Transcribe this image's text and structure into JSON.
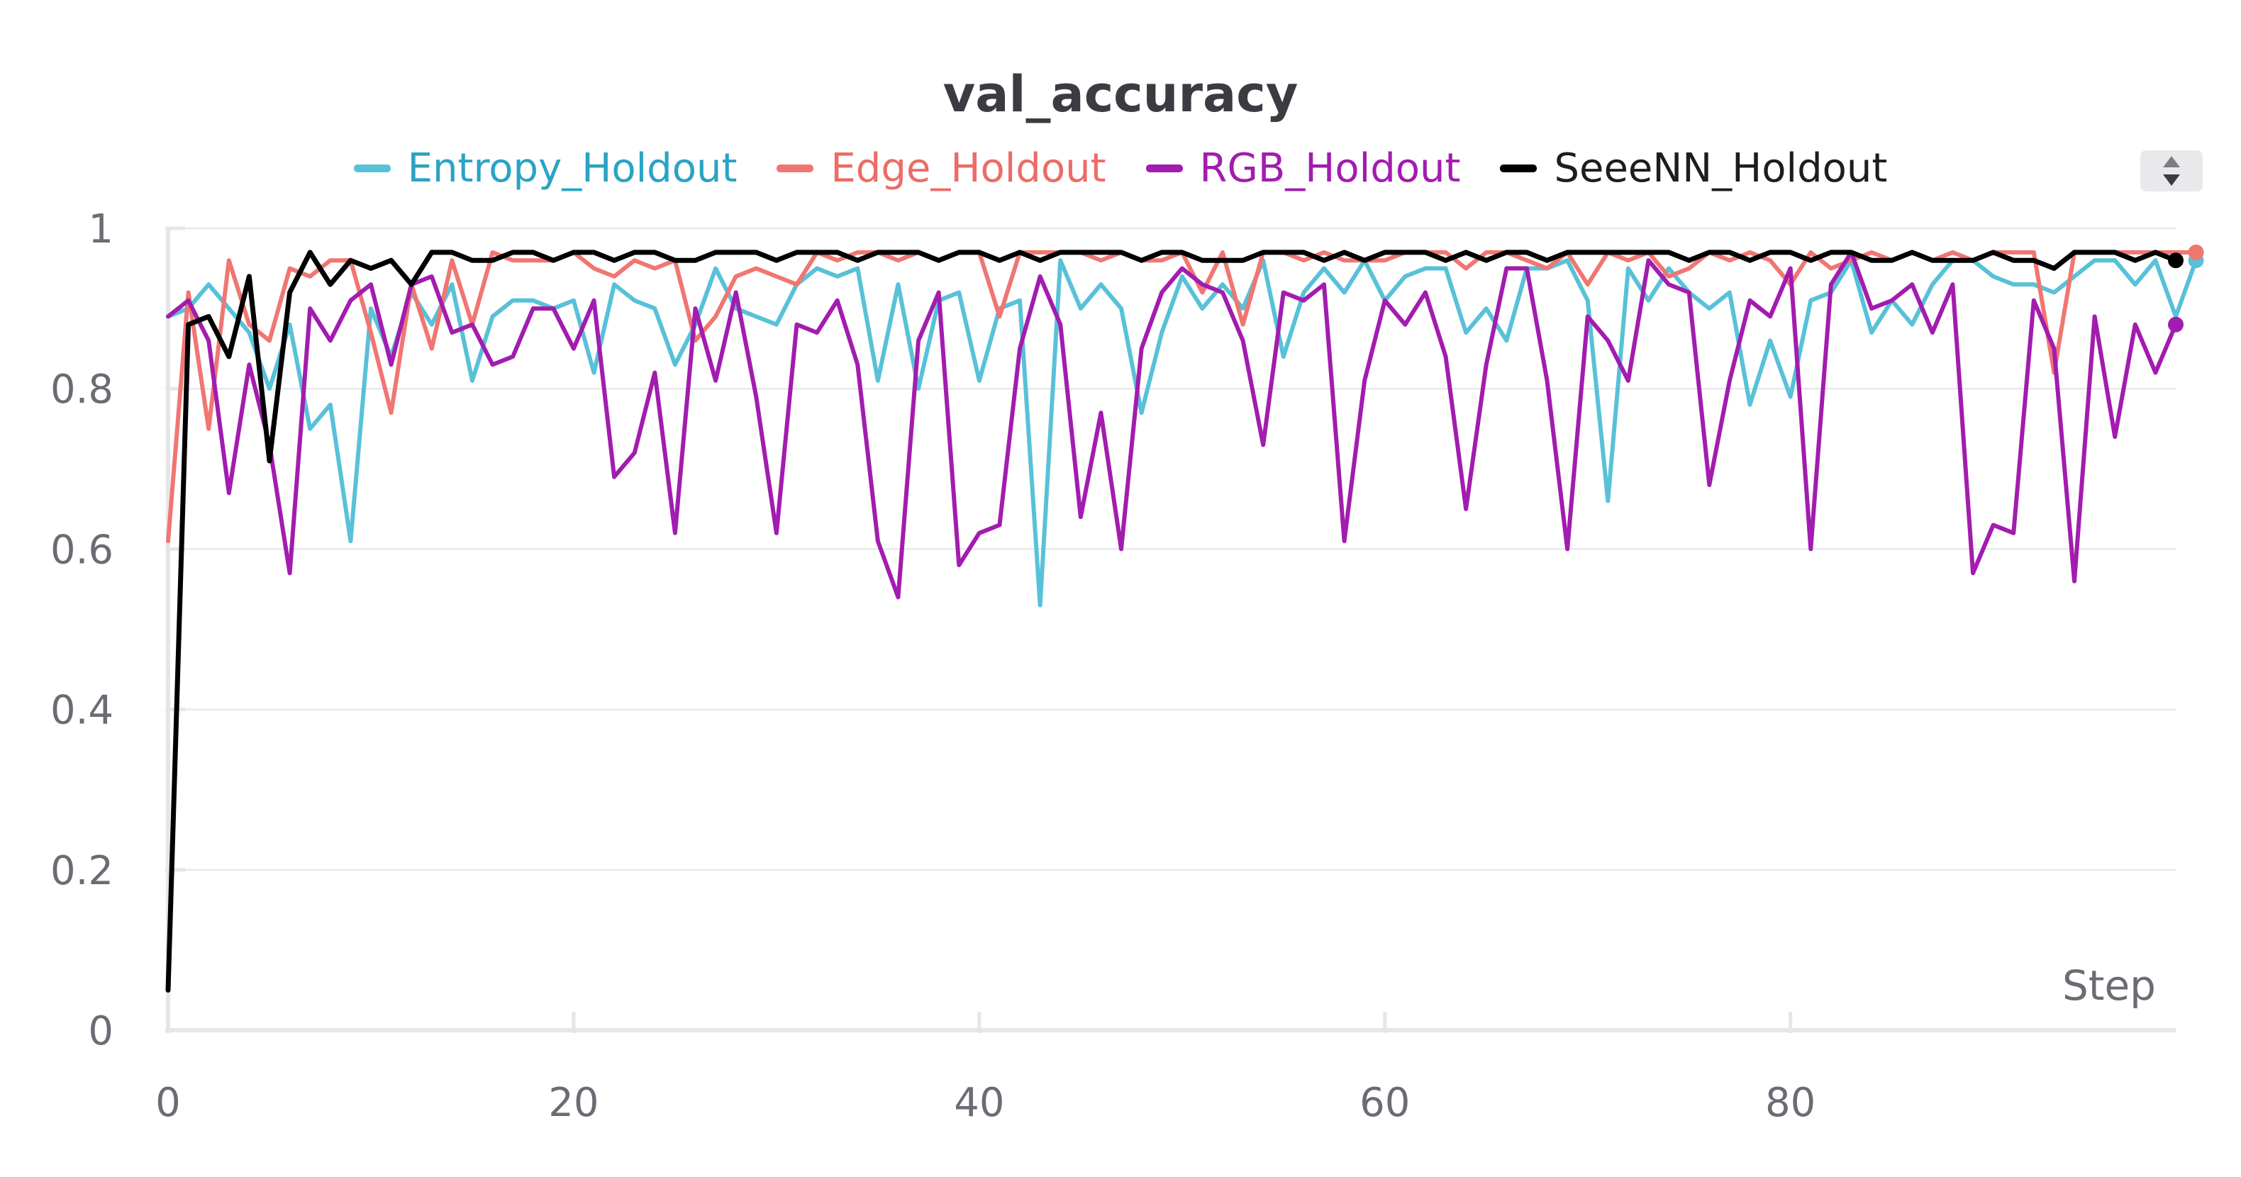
{
  "chart_data": {
    "type": "line",
    "title": "val_accuracy",
    "xlabel": "Step",
    "ylabel": "",
    "xlim": [
      0,
      99
    ],
    "ylim": [
      0,
      1
    ],
    "x_ticks": [
      0,
      20,
      40,
      60,
      80
    ],
    "y_ticks": [
      0,
      0.2,
      0.4,
      0.6,
      0.8,
      1
    ],
    "y_tick_labels": [
      "0",
      "0.2",
      "0.4",
      "0.6",
      "0.8",
      "1"
    ],
    "x_tick_labels": [
      "0",
      "20",
      "40",
      "60",
      "80"
    ],
    "grid": true,
    "legend_position": "top",
    "series": [
      {
        "name": "Entropy_Holdout",
        "color": "#58c1d8",
        "values": [
          0.89,
          0.9,
          0.93,
          0.9,
          0.87,
          0.8,
          0.88,
          0.75,
          0.78,
          0.61,
          0.9,
          0.84,
          0.92,
          0.88,
          0.93,
          0.81,
          0.89,
          0.91,
          0.91,
          0.9,
          0.91,
          0.82,
          0.93,
          0.91,
          0.9,
          0.83,
          0.88,
          0.95,
          0.9,
          0.89,
          0.88,
          0.93,
          0.95,
          0.94,
          0.95,
          0.81,
          0.93,
          0.8,
          0.91,
          0.92,
          0.81,
          0.9,
          0.91,
          0.53,
          0.96,
          0.9,
          0.93,
          0.9,
          0.77,
          0.87,
          0.94,
          0.9,
          0.93,
          0.9,
          0.96,
          0.84,
          0.92,
          0.95,
          0.92,
          0.96,
          0.91,
          0.94,
          0.95,
          0.95,
          0.87,
          0.9,
          0.86,
          0.95,
          0.95,
          0.96,
          0.91,
          0.66,
          0.95,
          0.91,
          0.95,
          0.92,
          0.9,
          0.92,
          0.78,
          0.86,
          0.79,
          0.91,
          0.92,
          0.96,
          0.87,
          0.91,
          0.88,
          0.93,
          0.96,
          0.96,
          0.94,
          0.93,
          0.93,
          0.92,
          0.94,
          0.96,
          0.96,
          0.93,
          0.96,
          0.89,
          0.96
        ]
      },
      {
        "name": "Edge_Holdout",
        "color": "#f07672",
        "values": [
          0.61,
          0.92,
          0.75,
          0.96,
          0.88,
          0.86,
          0.95,
          0.94,
          0.96,
          0.96,
          0.87,
          0.77,
          0.93,
          0.85,
          0.96,
          0.88,
          0.97,
          0.96,
          0.96,
          0.96,
          0.97,
          0.95,
          0.94,
          0.96,
          0.95,
          0.96,
          0.86,
          0.89,
          0.94,
          0.95,
          0.94,
          0.93,
          0.97,
          0.96,
          0.97,
          0.97,
          0.96,
          0.97,
          0.96,
          0.97,
          0.97,
          0.89,
          0.97,
          0.97,
          0.97,
          0.97,
          0.96,
          0.97,
          0.96,
          0.96,
          0.97,
          0.92,
          0.97,
          0.88,
          0.97,
          0.97,
          0.96,
          0.97,
          0.96,
          0.96,
          0.96,
          0.97,
          0.97,
          0.97,
          0.95,
          0.97,
          0.97,
          0.96,
          0.95,
          0.97,
          0.93,
          0.97,
          0.96,
          0.97,
          0.94,
          0.95,
          0.97,
          0.96,
          0.97,
          0.96,
          0.93,
          0.97,
          0.95,
          0.96,
          0.97,
          0.96,
          0.97,
          0.96,
          0.97,
          0.96,
          0.97,
          0.97,
          0.97,
          0.82,
          0.97,
          0.97,
          0.97,
          0.97,
          0.97,
          0.97,
          0.97
        ]
      },
      {
        "name": "RGB_Holdout",
        "color": "#a21caf",
        "values": [
          0.89,
          0.91,
          0.86,
          0.67,
          0.83,
          0.73,
          0.57,
          0.9,
          0.86,
          0.91,
          0.93,
          0.83,
          0.93,
          0.94,
          0.87,
          0.88,
          0.83,
          0.84,
          0.9,
          0.9,
          0.85,
          0.91,
          0.69,
          0.72,
          0.82,
          0.62,
          0.9,
          0.81,
          0.92,
          0.79,
          0.62,
          0.88,
          0.87,
          0.91,
          0.83,
          0.61,
          0.54,
          0.86,
          0.92,
          0.58,
          0.62,
          0.63,
          0.85,
          0.94,
          0.88,
          0.64,
          0.77,
          0.6,
          0.85,
          0.92,
          0.95,
          0.93,
          0.92,
          0.86,
          0.73,
          0.92,
          0.91,
          0.93,
          0.61,
          0.81,
          0.91,
          0.88,
          0.92,
          0.84,
          0.65,
          0.83,
          0.95,
          0.95,
          0.81,
          0.6,
          0.89,
          0.86,
          0.81,
          0.96,
          0.93,
          0.92,
          0.68,
          0.81,
          0.91,
          0.89,
          0.95,
          0.6,
          0.93,
          0.97,
          0.9,
          0.91,
          0.93,
          0.87,
          0.93,
          0.57,
          0.63,
          0.62,
          0.91,
          0.85,
          0.56,
          0.89,
          0.74,
          0.88,
          0.82,
          0.88
        ]
      },
      {
        "name": "SeeeNN_Holdout",
        "color": "#000000",
        "values": [
          0.05,
          0.88,
          0.89,
          0.84,
          0.94,
          0.71,
          0.92,
          0.97,
          0.93,
          0.96,
          0.95,
          0.96,
          0.93,
          0.97,
          0.97,
          0.96,
          0.96,
          0.97,
          0.97,
          0.96,
          0.97,
          0.97,
          0.96,
          0.97,
          0.97,
          0.96,
          0.96,
          0.97,
          0.97,
          0.97,
          0.96,
          0.97,
          0.97,
          0.97,
          0.96,
          0.97,
          0.97,
          0.97,
          0.96,
          0.97,
          0.97,
          0.96,
          0.97,
          0.96,
          0.97,
          0.97,
          0.97,
          0.97,
          0.96,
          0.97,
          0.97,
          0.96,
          0.96,
          0.96,
          0.97,
          0.97,
          0.97,
          0.96,
          0.97,
          0.96,
          0.97,
          0.97,
          0.97,
          0.96,
          0.97,
          0.96,
          0.97,
          0.97,
          0.96,
          0.97,
          0.97,
          0.97,
          0.97,
          0.97,
          0.97,
          0.96,
          0.97,
          0.97,
          0.96,
          0.97,
          0.97,
          0.96,
          0.97,
          0.97,
          0.96,
          0.96,
          0.97,
          0.96,
          0.96,
          0.96,
          0.97,
          0.96,
          0.96,
          0.95,
          0.97,
          0.97,
          0.97,
          0.96,
          0.97,
          0.96
        ]
      }
    ]
  }
}
